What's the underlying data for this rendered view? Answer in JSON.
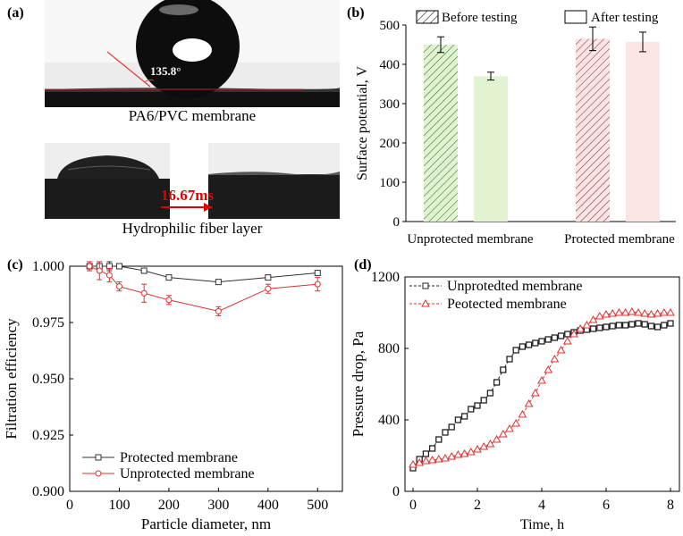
{
  "panels": {
    "a": "(a)",
    "b": "(b)",
    "c": "(c)",
    "d": "(d)"
  },
  "panel_a": {
    "contact_angle": "135.8°",
    "caption_top": "PA6/PVC membrane",
    "time_label": "16.67ms",
    "caption_bottom": "Hydrophilic fiber layer"
  },
  "chart_data": [
    {
      "id": "b",
      "type": "bar",
      "categories": [
        "Unprotected membrane",
        "Protected membrane"
      ],
      "legend": [
        "Before testing",
        "After testing"
      ],
      "series": [
        {
          "name": "Before testing",
          "values": [
            450,
            465
          ],
          "errors": [
            20,
            30
          ]
        },
        {
          "name": "After testing",
          "values": [
            370,
            457
          ],
          "errors": [
            10,
            25
          ]
        }
      ],
      "ylabel": "Surface potential, V",
      "ylim": [
        0,
        500
      ],
      "yticks": [
        0,
        100,
        200,
        300,
        400,
        500
      ],
      "colors": {
        "unprotected": "#e2f3d2",
        "unprotected_hatch": "#2f6b2f",
        "protected": "#fbe4e4",
        "protected_hatch": "#7a3030"
      }
    },
    {
      "id": "c",
      "type": "line",
      "xlabel": "Particle diameter, nm",
      "ylabel": "Filtration efficiency",
      "xlim": [
        0,
        550
      ],
      "ylim": [
        0.9,
        1.0
      ],
      "xticks": [
        0,
        100,
        200,
        300,
        400,
        500
      ],
      "yticks": [
        "0.900",
        "0.925",
        "0.950",
        "0.975",
        "1.000"
      ],
      "series": [
        {
          "name": "Protected membrane",
          "color": "#333333",
          "x": [
            40,
            60,
            80,
            100,
            150,
            200,
            300,
            400,
            500
          ],
          "y": [
            1.0,
            1.0,
            1.0,
            1.0,
            0.998,
            0.995,
            0.993,
            0.995,
            0.997
          ],
          "err": [
            0.002,
            0.002,
            0.002,
            0.001,
            0.0008,
            0.0008,
            0.001,
            0.001,
            0.0008
          ]
        },
        {
          "name": "Unprotected membrane",
          "color": "#e03030",
          "x": [
            40,
            60,
            80,
            100,
            150,
            200,
            300,
            400,
            500
          ],
          "y": [
            1.0,
            0.998,
            0.996,
            0.991,
            0.988,
            0.985,
            0.98,
            0.99,
            0.992
          ],
          "err": [
            0.002,
            0.004,
            0.003,
            0.002,
            0.004,
            0.002,
            0.002,
            0.002,
            0.003
          ]
        }
      ]
    },
    {
      "id": "d",
      "type": "line",
      "xlabel": "Time, h",
      "ylabel": "Pressure drop, Pa",
      "xlim": [
        0,
        8
      ],
      "ylim": [
        0,
        1200
      ],
      "xticks": [
        0,
        2,
        4,
        6,
        8
      ],
      "yticks": [
        0,
        400,
        800,
        1200
      ],
      "series": [
        {
          "name": "Unprotedted membrane",
          "color": "#222222",
          "marker": "square",
          "x": [
            0,
            0.2,
            0.4,
            0.6,
            0.8,
            1.0,
            1.2,
            1.4,
            1.6,
            1.8,
            2.0,
            2.2,
            2.4,
            2.6,
            2.8,
            3.0,
            3.2,
            3.4,
            3.6,
            3.8,
            4.0,
            4.2,
            4.4,
            4.6,
            4.8,
            5.0,
            5.2,
            5.4,
            5.6,
            5.8,
            6.0,
            6.2,
            6.4,
            6.6,
            6.8,
            7.0,
            7.2,
            7.4,
            7.6,
            7.8,
            8.0
          ],
          "y": [
            130,
            180,
            210,
            240,
            290,
            330,
            360,
            400,
            420,
            460,
            480,
            510,
            550,
            610,
            680,
            740,
            790,
            810,
            820,
            830,
            840,
            850,
            860,
            870,
            880,
            890,
            900,
            905,
            910,
            915,
            920,
            925,
            930,
            930,
            935,
            940,
            935,
            925,
            920,
            930,
            940
          ]
        },
        {
          "name": "Peotected membrane",
          "color": "#e03030",
          "marker": "triangle",
          "x": [
            0,
            0.2,
            0.4,
            0.6,
            0.8,
            1.0,
            1.2,
            1.4,
            1.6,
            1.8,
            2.0,
            2.2,
            2.4,
            2.6,
            2.8,
            3.0,
            3.2,
            3.4,
            3.6,
            3.8,
            4.0,
            4.2,
            4.4,
            4.6,
            4.8,
            5.0,
            5.2,
            5.4,
            5.6,
            5.8,
            6.0,
            6.2,
            6.4,
            6.6,
            6.8,
            7.0,
            7.2,
            7.4,
            7.6,
            7.8,
            8.0
          ],
          "y": [
            150,
            160,
            170,
            175,
            180,
            185,
            195,
            205,
            210,
            220,
            235,
            250,
            265,
            290,
            320,
            350,
            380,
            430,
            490,
            550,
            620,
            680,
            740,
            790,
            840,
            880,
            910,
            930,
            960,
            980,
            990,
            995,
            1000,
            1000,
            1005,
            1000,
            995,
            990,
            995,
            1000,
            1000
          ]
        }
      ]
    }
  ]
}
